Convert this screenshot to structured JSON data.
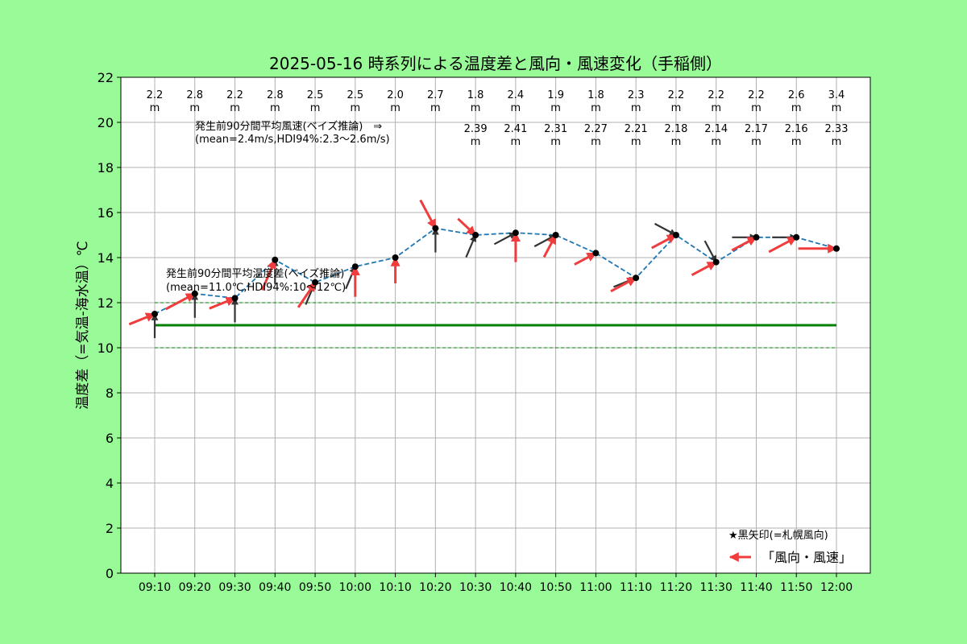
{
  "chart_data": {
    "type": "line",
    "title": "2025-05-16 時系列による温度差と風向・風速変化（手稲側）",
    "ylabel": "温度差（=気温-海水温）℃",
    "xlabel": "",
    "ylim": [
      0,
      22
    ],
    "yticks": [
      "0",
      "2",
      "4",
      "6",
      "8",
      "10",
      "12",
      "14",
      "16",
      "18",
      "20",
      "22"
    ],
    "grid": true,
    "categories": [
      "09:10",
      "09:20",
      "09:30",
      "09:40",
      "09:50",
      "10:00",
      "10:10",
      "10:20",
      "10:30",
      "10:40",
      "10:50",
      "11:00",
      "11:10",
      "11:20",
      "11:30",
      "11:40",
      "11:50",
      "12:00"
    ],
    "series": [
      {
        "values": [
          11.5,
          12.4,
          12.2,
          13.9,
          12.9,
          13.6,
          14.0,
          15.3,
          15.0,
          15.1,
          15.0,
          14.2,
          13.1,
          15.0,
          13.8,
          14.9,
          14.9,
          14.4
        ],
        "color": "#1f77b4",
        "style": "dashed"
      }
    ],
    "wind_speed_labels": [
      "2.2",
      "2.8",
      "2.2",
      "2.8",
      "2.5",
      "2.5",
      "2.0",
      "2.7",
      "1.8",
      "2.4",
      "1.9",
      "1.8",
      "2.3",
      "2.2",
      "2.2",
      "2.2",
      "2.6",
      "3.4"
    ],
    "wind_speed_unit": "m",
    "estimated_speed_labels": [
      "",
      "",
      "",
      "",
      "",
      "",
      "",
      "",
      "2.39",
      "2.41",
      "2.31",
      "2.27",
      "2.21",
      "2.18",
      "2.14",
      "2.17",
      "2.16",
      "2.33"
    ],
    "red_arrow_directions": [
      248,
      242,
      248,
      203,
      214,
      180,
      180,
      332,
      313,
      180,
      208,
      242,
      242,
      242,
      242,
      242,
      242,
      270
    ],
    "black_arrow_directions": [
      180,
      180,
      180,
      180,
      203,
      203,
      180,
      180,
      203,
      242,
      242,
      242,
      248,
      298,
      332,
      270,
      270,
      270
    ],
    "mean_temp_line": {
      "value": 11.0,
      "lower": 10.0,
      "upper": 12.0,
      "from": "09:10",
      "to": "12:00",
      "color": "#008000"
    },
    "annotations": {
      "wind_note_line1": "発生前90分間平均風速(ベイズ推論)　⇒",
      "wind_note_line2": "(mean=2.4m/s,HDI94%:2.3～2.6m/s)",
      "temp_note_line1": "発生前90分間平均温度差(ベイズ推論)",
      "temp_note_line2": "(mean=11.0℃,HDI94%:10～12℃)"
    },
    "legend": {
      "note": "★黒矢印(=札幌風向)",
      "entry": "「風向・風速」",
      "placement": "bottom-right"
    }
  },
  "colors": {
    "background": "#98fb98",
    "plot_background": "#ffffff",
    "line": "#1f77b4",
    "marker": "#000000",
    "red_arrow": "#f03c3c",
    "black_arrow": "#333333",
    "mean_line": "#008000",
    "grid": "#b0b0b0"
  }
}
